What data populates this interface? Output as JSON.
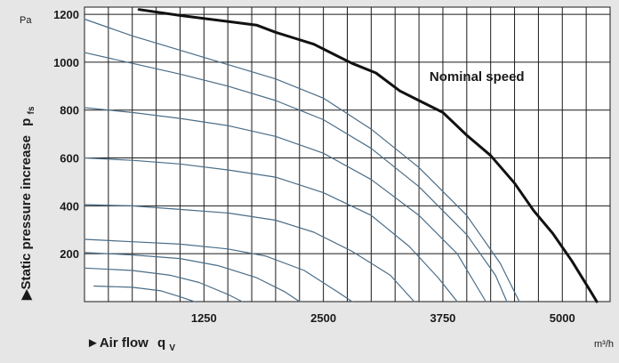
{
  "chart_data": {
    "type": "line",
    "xlabel": "►Air flow",
    "xlabel_symbol": "q",
    "xlabel_sub": "V",
    "x_unit": "m³/h",
    "ylabel": "▶Static pressure increase",
    "ylabel_symbol": "p",
    "ylabel_sub": "fs",
    "y_unit": "Pa",
    "xlim": [
      0,
      5500
    ],
    "ylim": [
      0,
      1230
    ],
    "x_ticks": [
      1250,
      2500,
      3750,
      5000
    ],
    "y_ticks": [
      200,
      400,
      600,
      800,
      1000,
      1200
    ],
    "grid": true,
    "annotations": [
      {
        "text": "Nominal speed",
        "x": 3610,
        "y": 940
      }
    ],
    "series": [
      {
        "role": "nominal",
        "color": "#111111",
        "points": [
          [
            570,
            1220
          ],
          [
            1000,
            1195
          ],
          [
            1500,
            1170
          ],
          [
            1800,
            1155
          ],
          [
            2000,
            1125
          ],
          [
            2200,
            1100
          ],
          [
            2400,
            1075
          ],
          [
            2600,
            1035
          ],
          [
            2800,
            995
          ],
          [
            3050,
            955
          ],
          [
            3300,
            880
          ],
          [
            3500,
            840
          ],
          [
            3750,
            790
          ],
          [
            4000,
            695
          ],
          [
            4250,
            610
          ],
          [
            4500,
            495
          ],
          [
            4700,
            380
          ],
          [
            4900,
            285
          ],
          [
            5100,
            170
          ],
          [
            5300,
            40
          ],
          [
            5360,
            0
          ]
        ]
      },
      {
        "role": "reduced",
        "color": "#4a6d88",
        "points": [
          [
            0,
            1180
          ],
          [
            500,
            1110
          ],
          [
            1000,
            1050
          ],
          [
            1500,
            990
          ],
          [
            2000,
            930
          ],
          [
            2500,
            850
          ],
          [
            3000,
            720
          ],
          [
            3500,
            560
          ],
          [
            4000,
            360
          ],
          [
            4350,
            160
          ],
          [
            4550,
            0
          ]
        ]
      },
      {
        "role": "reduced",
        "color": "#4a6d88",
        "points": [
          [
            0,
            1040
          ],
          [
            500,
            995
          ],
          [
            1000,
            950
          ],
          [
            1500,
            900
          ],
          [
            2000,
            840
          ],
          [
            2500,
            760
          ],
          [
            3000,
            640
          ],
          [
            3500,
            480
          ],
          [
            4000,
            280
          ],
          [
            4300,
            110
          ],
          [
            4420,
            0
          ]
        ]
      },
      {
        "role": "reduced",
        "color": "#4a6d88",
        "points": [
          [
            0,
            810
          ],
          [
            500,
            790
          ],
          [
            1000,
            765
          ],
          [
            1500,
            735
          ],
          [
            2000,
            690
          ],
          [
            2500,
            620
          ],
          [
            3000,
            510
          ],
          [
            3500,
            360
          ],
          [
            3900,
            200
          ],
          [
            4200,
            0
          ]
        ]
      },
      {
        "role": "reduced",
        "color": "#4a6d88",
        "points": [
          [
            0,
            600
          ],
          [
            500,
            590
          ],
          [
            1000,
            575
          ],
          [
            1500,
            550
          ],
          [
            2000,
            520
          ],
          [
            2500,
            455
          ],
          [
            3000,
            360
          ],
          [
            3400,
            230
          ],
          [
            3700,
            100
          ],
          [
            3900,
            0
          ]
        ]
      },
      {
        "role": "reduced",
        "color": "#4a6d88",
        "points": [
          [
            0,
            405
          ],
          [
            500,
            400
          ],
          [
            1000,
            385
          ],
          [
            1500,
            370
          ],
          [
            2000,
            340
          ],
          [
            2400,
            290
          ],
          [
            2800,
            210
          ],
          [
            3200,
            110
          ],
          [
            3450,
            0
          ]
        ]
      },
      {
        "role": "reduced",
        "color": "#4a6d88",
        "points": [
          [
            0,
            260
          ],
          [
            500,
            250
          ],
          [
            1000,
            240
          ],
          [
            1500,
            220
          ],
          [
            1900,
            190
          ],
          [
            2300,
            130
          ],
          [
            2650,
            40
          ],
          [
            2800,
            0
          ]
        ]
      },
      {
        "role": "reduced",
        "color": "#4a6d88",
        "points": [
          [
            0,
            205
          ],
          [
            500,
            195
          ],
          [
            1000,
            180
          ],
          [
            1400,
            150
          ],
          [
            1800,
            100
          ],
          [
            2100,
            40
          ],
          [
            2250,
            0
          ]
        ]
      },
      {
        "role": "reduced",
        "color": "#4a6d88",
        "points": [
          [
            0,
            140
          ],
          [
            500,
            130
          ],
          [
            900,
            110
          ],
          [
            1200,
            80
          ],
          [
            1500,
            30
          ],
          [
            1650,
            0
          ]
        ]
      },
      {
        "role": "reduced",
        "color": "#4a6d88",
        "points": [
          [
            100,
            65
          ],
          [
            500,
            60
          ],
          [
            800,
            45
          ],
          [
            1000,
            20
          ],
          [
            1150,
            0
          ]
        ]
      }
    ]
  }
}
